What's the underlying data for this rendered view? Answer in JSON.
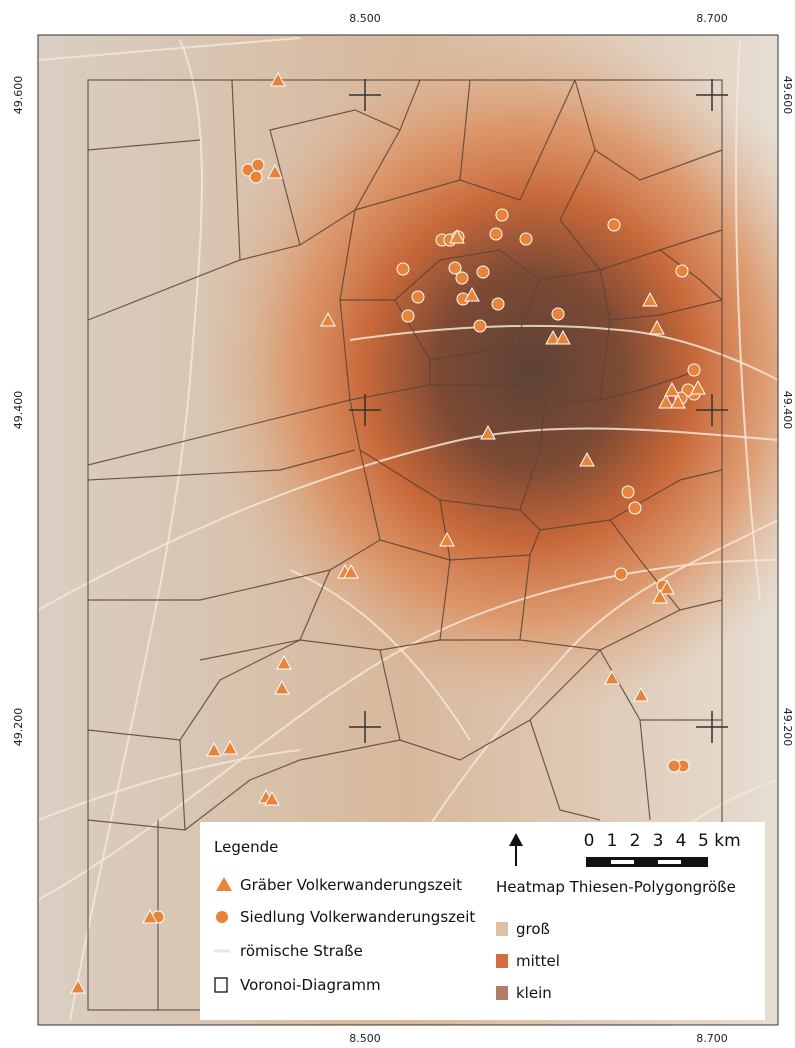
{
  "axes": {
    "top": [
      "8.500",
      "8.700"
    ],
    "bottom": [
      "8.500",
      "8.700"
    ],
    "left": [
      "49.600",
      "49.400",
      "49.200"
    ],
    "right": [
      "49.600",
      "49.400",
      "49.200"
    ]
  },
  "legend": {
    "title": "Legende",
    "items": [
      "Gräber Volkerwanderungszeit",
      "Siedlung Volkerwanderungszeit",
      "römische Straße",
      "Voronoi-Diagramm"
    ]
  },
  "scale_bar": {
    "labels": [
      "0",
      "1",
      "2",
      "3",
      "4",
      "5 km"
    ]
  },
  "heatmap": {
    "title": "Heatmap Thiesen-Polygongröße",
    "items": [
      "groß",
      "mittel",
      "klein"
    ]
  }
}
